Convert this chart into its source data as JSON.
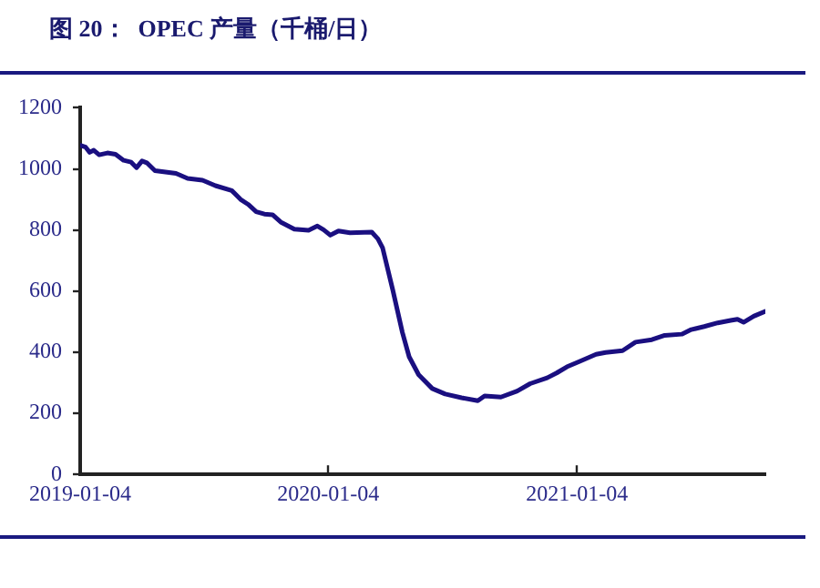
{
  "chart_data": {
    "type": "line",
    "title": "图 20：  OPEC 产量（千桶/日）",
    "x": [
      "2019-01-04",
      "2019-01-12",
      "2019-01-18",
      "2019-01-24",
      "2019-02-01",
      "2019-02-13",
      "2019-02-25",
      "2019-03-09",
      "2019-03-20",
      "2019-03-28",
      "2019-04-05",
      "2019-04-12",
      "2019-04-24",
      "2019-05-25",
      "2019-06-11",
      "2019-07-03",
      "2019-07-22",
      "2019-08-15",
      "2019-08-28",
      "2019-09-08",
      "2019-09-20",
      "2019-10-02",
      "2019-10-14",
      "2019-10-26",
      "2019-11-15",
      "2019-12-06",
      "2019-12-19",
      "2019-12-28",
      "2020-01-07",
      "2020-01-19",
      "2020-02-05",
      "2020-03-08",
      "2020-03-17",
      "2020-03-24",
      "2020-04-08",
      "2020-04-22",
      "2020-05-02",
      "2020-05-16",
      "2020-06-05",
      "2020-06-24",
      "2020-07-18",
      "2020-08-11",
      "2020-08-21",
      "2020-09-14",
      "2020-10-08",
      "2020-10-27",
      "2020-11-21",
      "2020-12-05",
      "2020-12-20",
      "2021-01-08",
      "2021-02-01",
      "2021-02-15",
      "2021-03-12",
      "2021-03-31",
      "2021-04-24",
      "2021-05-13",
      "2021-06-07",
      "2021-06-21",
      "2021-07-10",
      "2021-07-30",
      "2021-08-18",
      "2021-08-28",
      "2021-09-06",
      "2021-09-21",
      "2021-10-08"
    ],
    "series": [
      {
        "color": "#1a0f80",
        "values": [
          1077,
          1071,
          1054,
          1061,
          1046,
          1052,
          1048,
          1028,
          1022,
          1004,
          1026,
          1020,
          994,
          985,
          969,
          963,
          945,
          929,
          900,
          884,
          860,
          852,
          850,
          826,
          803,
          799,
          813,
          801,
          783,
          797,
          791,
          793,
          771,
          741,
          603,
          465,
          385,
          326,
          281,
          263,
          251,
          241,
          257,
          253,
          273,
          297,
          316,
          332,
          352,
          370,
          393,
          399,
          405,
          433,
          441,
          455,
          459,
          474,
          484,
          496,
          504,
          508,
          498,
          518,
          534
        ]
      }
    ],
    "xlim": [
      "2019-01-04",
      "2021-10-08"
    ],
    "xticks": [
      "2019-01-04",
      "2020-01-04",
      "2021-01-04"
    ],
    "ylim": [
      0,
      1200
    ],
    "yticks": [
      0,
      200,
      400,
      600,
      800,
      1000,
      1200
    ],
    "grid": false,
    "legend": false,
    "marker": "none",
    "line_style": "solid"
  }
}
